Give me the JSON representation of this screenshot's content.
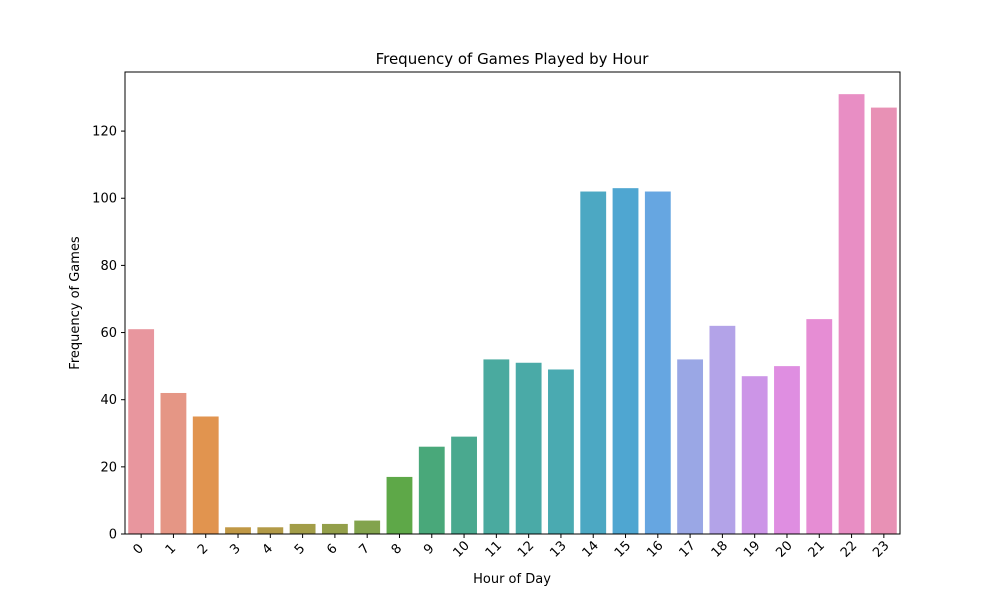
{
  "chart_data": {
    "type": "bar",
    "title": "Frequency of Games Played by Hour",
    "xlabel": "Hour of Day",
    "ylabel": "Frequency of Games",
    "categories": [
      "0",
      "1",
      "2",
      "3",
      "4",
      "5",
      "6",
      "7",
      "8",
      "9",
      "10",
      "11",
      "12",
      "13",
      "14",
      "15",
      "16",
      "17",
      "18",
      "19",
      "20",
      "21",
      "22",
      "23"
    ],
    "values": [
      61,
      42,
      35,
      2,
      2,
      3,
      3,
      4,
      17,
      26,
      29,
      52,
      51,
      49,
      102,
      103,
      102,
      52,
      62,
      47,
      50,
      64,
      131,
      127
    ],
    "colors": [
      "#e8969e",
      "#e59685",
      "#e1944f",
      "#c09845",
      "#b29a47",
      "#a29d48",
      "#939f4a",
      "#82a34d",
      "#5ea848",
      "#49a87a",
      "#4aa98f",
      "#4aaa9f",
      "#4aaaa7",
      "#4aaab1",
      "#4ca8c3",
      "#4fa6d1",
      "#66a6e1",
      "#9aa7e5",
      "#b3a3e8",
      "#cc95e7",
      "#df8ee1",
      "#e68dd4",
      "#e88ec4",
      "#e891b5"
    ],
    "yticks": [
      0,
      20,
      40,
      60,
      80,
      100,
      120
    ],
    "ylim": [
      0,
      137.6
    ],
    "grid": false,
    "legend": "none"
  }
}
